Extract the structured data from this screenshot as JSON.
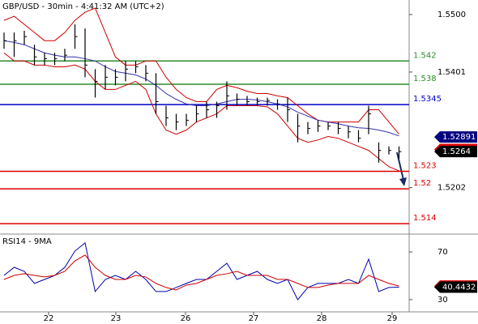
{
  "chart_data": [
    {
      "type": "ohlc",
      "title": "GBP/USD - 30min - 4:41:32 AM (UTC+2)",
      "xlim": [
        -0.4,
        40
      ],
      "ylim": [
        1.5122,
        1.5525
      ],
      "yticks": [
        {
          "value": 1.55,
          "label": "1.5500"
        },
        1.5401,
        1.5202
      ],
      "high": [
        1.5469,
        1.5469,
        1.5472,
        1.5448,
        1.5434,
        1.5434,
        1.5441,
        1.5483,
        1.5476,
        1.5406,
        1.5413,
        1.5406,
        1.542,
        1.542,
        1.5413,
        1.5399,
        1.5343,
        1.5329,
        1.5329,
        1.5343,
        1.535,
        1.535,
        1.5385,
        1.5364,
        1.536,
        1.5357,
        1.5357,
        1.5354,
        1.5357,
        1.5329,
        1.5315,
        1.5318,
        1.5315,
        1.5315,
        1.5308,
        1.5301,
        1.5343,
        1.528,
        1.5273,
        1.5273
      ],
      "low": [
        1.5441,
        1.5427,
        1.5448,
        1.5413,
        1.5413,
        1.5413,
        1.542,
        1.5441,
        1.5392,
        1.5357,
        1.5371,
        1.5378,
        1.5385,
        1.5399,
        1.5385,
        1.5329,
        1.5308,
        1.5301,
        1.5308,
        1.5315,
        1.5322,
        1.5322,
        1.5336,
        1.5343,
        1.5343,
        1.5343,
        1.5343,
        1.5336,
        1.5315,
        1.528,
        1.5294,
        1.5298,
        1.5301,
        1.5294,
        1.5287,
        1.528,
        1.5294,
        1.5245,
        1.5259,
        1.5252
      ],
      "close": [
        1.5455,
        1.5455,
        1.5462,
        1.5427,
        1.5424,
        1.5424,
        1.543,
        1.5462,
        1.5413,
        1.5385,
        1.5392,
        1.5392,
        1.5406,
        1.541,
        1.5399,
        1.535,
        1.5322,
        1.5315,
        1.5318,
        1.5329,
        1.5336,
        1.5343,
        1.536,
        1.5354,
        1.535,
        1.535,
        1.5352,
        1.5346,
        1.5336,
        1.5308,
        1.5304,
        1.5308,
        1.5308,
        1.5304,
        1.5298,
        1.5287,
        1.5329,
        1.5266,
        1.5266,
        1.5264
      ],
      "bar_color": "#000000",
      "lines": [
        {
          "color": "#cc0000",
          "values": [
            1.549,
            1.5497,
            1.5483,
            1.5469,
            1.5455,
            1.5455,
            1.5469,
            1.549,
            1.5504,
            1.5511,
            1.5469,
            1.5427,
            1.5413,
            1.5413,
            1.542,
            1.542,
            1.5392,
            1.5371,
            1.5357,
            1.535,
            1.535,
            1.5371,
            1.5378,
            1.5374,
            1.5368,
            1.5364,
            1.5364,
            1.536,
            1.5357,
            1.5343,
            1.5329,
            1.5318,
            1.5315,
            1.5315,
            1.5315,
            1.5315,
            1.5336,
            1.5336,
            1.5315,
            1.5294
          ]
        },
        {
          "color": "#cc0000",
          "values": [
            1.5434,
            1.542,
            1.542,
            1.5413,
            1.5413,
            1.541,
            1.541,
            1.5413,
            1.5406,
            1.5385,
            1.5371,
            1.5371,
            1.5378,
            1.5385,
            1.5371,
            1.5329,
            1.5301,
            1.5294,
            1.5301,
            1.5315,
            1.5322,
            1.5329,
            1.5343,
            1.5343,
            1.5343,
            1.5343,
            1.5341,
            1.5329,
            1.5308,
            1.5287,
            1.528,
            1.5284,
            1.529,
            1.5287,
            1.528,
            1.5273,
            1.5266,
            1.5252,
            1.5238,
            1.5231
          ]
        },
        {
          "color": "#3333aa",
          "values": [
            1.5455,
            1.5452,
            1.5448,
            1.5441,
            1.5434,
            1.543,
            1.5427,
            1.5427,
            1.5424,
            1.542,
            1.541,
            1.5402,
            1.5399,
            1.5396,
            1.5389,
            1.5378,
            1.5364,
            1.5354,
            1.5346,
            1.5343,
            1.5343,
            1.5346,
            1.535,
            1.5354,
            1.5354,
            1.5353,
            1.535,
            1.5346,
            1.5341,
            1.5332,
            1.5325,
            1.5318,
            1.5315,
            1.5312,
            1.5308,
            1.5305,
            1.5304,
            1.5301,
            1.5297,
            1.5291
          ]
        }
      ],
      "levels": [
        {
          "value": 1.542,
          "color": "#2e8b2e"
        },
        {
          "value": 1.538,
          "color": "#2e8b2e"
        },
        {
          "value": 1.5345,
          "color": "#0000cc"
        },
        {
          "value": 1.523,
          "color": "#dd0000"
        },
        {
          "value": 1.52,
          "color": "#dd0000"
        },
        {
          "value": 1.514,
          "color": "#dd0000"
        }
      ],
      "tags": [
        {
          "value": 1.52891,
          "color": "#000080"
        },
        {
          "value": 1.52678,
          "color": "#dd0000"
        },
        {
          "value": 1.5264,
          "color": "#000000"
        }
      ]
    },
    {
      "type": "line",
      "title": "RSI14 - 9MA",
      "xlim": [
        -0.4,
        40
      ],
      "ylim": [
        19.8,
        84.2
      ],
      "yticks": [
        30,
        70
      ],
      "xticks": [
        {
          "value": 4.4,
          "label": "22"
        },
        {
          "value": 11.04,
          "label": "23"
        },
        {
          "value": 17.92,
          "label": "26"
        },
        {
          "value": 24.64,
          "label": "27"
        },
        {
          "value": 31.36,
          "label": "28"
        },
        {
          "value": 38.32,
          "label": "29"
        }
      ],
      "lines": [
        {
          "color": "#0000aa",
          "values": [
            50.3,
            57.1,
            53.7,
            43.6,
            46.9,
            50.3,
            57.1,
            70.7,
            77.5,
            36.8,
            46.9,
            50.3,
            46.9,
            53.7,
            46.9,
            36.8,
            36.8,
            40.2,
            43.6,
            46.9,
            46.9,
            53.7,
            60.5,
            46.9,
            50.3,
            53.7,
            46.9,
            43.6,
            46.9,
            30,
            40.2,
            43.6,
            43.6,
            43.6,
            46.9,
            43.6,
            63.9,
            36.8,
            40.2,
            40.4432
          ]
        },
        {
          "color": "#cc0000",
          "values": [
            46.9,
            50.3,
            51.7,
            50.3,
            49,
            50.3,
            53.7,
            62.5,
            67.3,
            57.1,
            50.3,
            46.9,
            46.9,
            50.3,
            49,
            43.6,
            40.2,
            38.1,
            42.2,
            43.6,
            46.9,
            50.3,
            51.7,
            53.7,
            50.3,
            50.3,
            50.3,
            46.9,
            46.9,
            43.6,
            40.2,
            40.2,
            42.2,
            43.6,
            43.6,
            43.6,
            50.3,
            46.9,
            43.6,
            41.4378
          ]
        }
      ],
      "tags": [
        {
          "value": 41.4378,
          "color": "#dd0000"
        },
        {
          "value": 40.4432,
          "color": "#000000"
        }
      ]
    }
  ]
}
